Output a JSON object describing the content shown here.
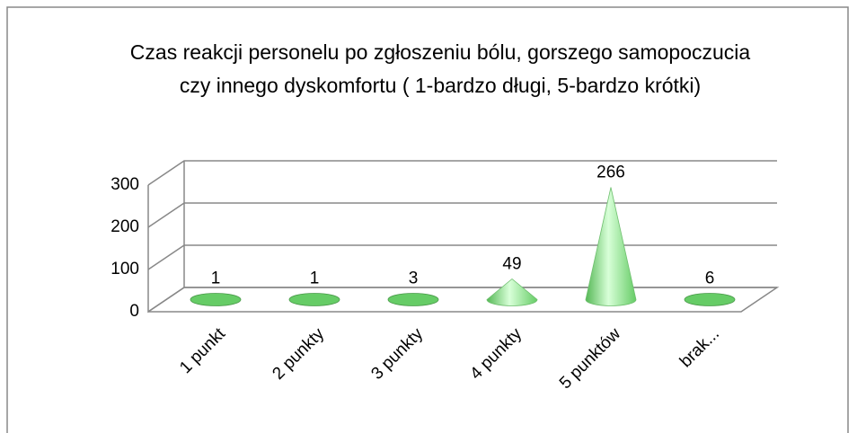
{
  "chart_data": {
    "type": "cone3d",
    "title": "Czas reakcji personelu po zgłoszeniu bólu, gorszego samopoczucia czy innego dyskomfortu ( 1-bardzo długi, 5-bardzo krótki)",
    "categories": [
      "1 punkt",
      "2 punkty",
      "3 punkty",
      "4 punkty",
      "5 punktów",
      "brak..."
    ],
    "values": [
      1,
      1,
      3,
      49,
      266,
      6
    ],
    "color": "#66cc66",
    "ylim": [
      0,
      300
    ],
    "yticks": [
      0,
      100,
      200,
      300
    ],
    "grid": true
  }
}
